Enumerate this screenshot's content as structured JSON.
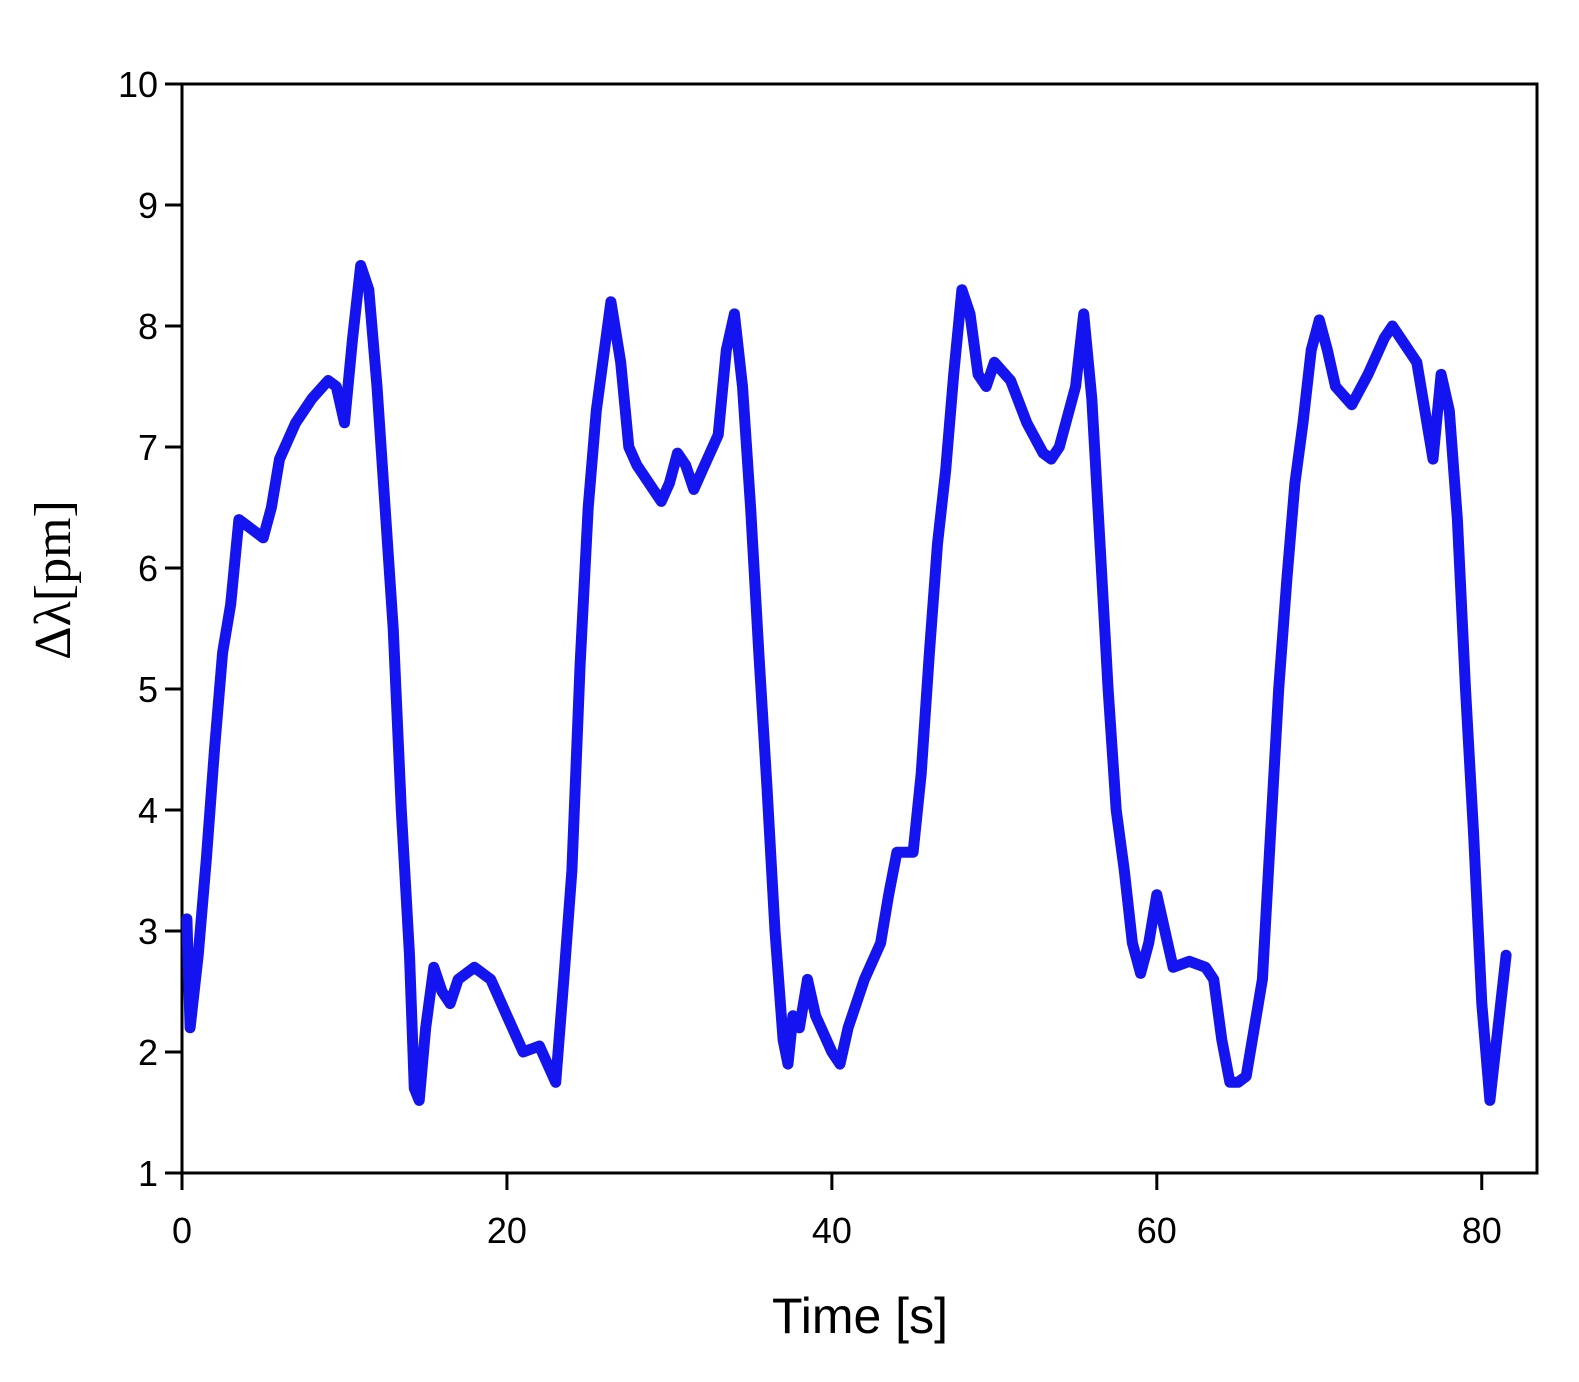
{
  "chart_data": {
    "type": "line",
    "xlabel": "Time [s]",
    "ylabel": "Δλ[pm]",
    "xlim": [
      0,
      83.4
    ],
    "ylim": [
      1,
      10
    ],
    "xticks": [
      0,
      20,
      40,
      60,
      80
    ],
    "yticks": [
      1,
      2,
      3,
      4,
      5,
      6,
      7,
      8,
      9,
      10
    ],
    "series": [
      {
        "color": "#1414f0",
        "x": [
          0.3,
          0.5,
          1,
          1.5,
          2,
          2.5,
          3,
          3.5,
          4,
          5,
          5.5,
          6,
          7,
          8,
          9,
          9.5,
          10,
          10.5,
          11,
          11.5,
          12,
          13,
          13.5,
          14,
          14.3,
          14.6,
          15,
          15.5,
          16,
          16.5,
          17,
          18,
          19,
          20,
          21,
          22,
          23,
          23.5,
          24,
          24.5,
          25,
          25.5,
          26,
          26.4,
          27,
          27.5,
          28,
          29,
          29.5,
          30,
          30.5,
          31,
          31.5,
          32,
          33,
          33.5,
          34,
          34.5,
          35,
          35.5,
          36,
          36.5,
          37,
          37.3,
          37.6,
          38,
          38.5,
          39,
          40,
          40.5,
          41,
          42,
          43,
          43.5,
          44,
          45,
          45.5,
          46,
          46.5,
          47,
          47.5,
          48,
          48.5,
          49,
          49.5,
          50,
          51,
          52,
          53,
          53.5,
          54,
          55,
          55.5,
          56,
          56.5,
          57,
          57.5,
          58,
          58.5,
          59,
          59.5,
          60,
          60.5,
          61,
          62,
          63,
          63.5,
          64,
          64.5,
          65,
          65.5,
          66,
          66.5,
          67,
          67.5,
          68,
          68.5,
          69,
          69.5,
          70,
          70.5,
          71,
          72,
          73,
          74,
          74.5,
          75,
          76,
          76.5,
          77,
          77.5,
          78,
          78.5,
          79,
          79.5,
          80,
          80.5,
          81,
          81.5
        ],
        "values": [
          3.1,
          2.2,
          2.8,
          3.6,
          4.5,
          5.3,
          5.7,
          6.4,
          6.35,
          6.25,
          6.5,
          6.9,
          7.2,
          7.4,
          7.55,
          7.5,
          7.2,
          7.9,
          8.5,
          8.3,
          7.5,
          5.5,
          4.0,
          2.8,
          1.7,
          1.6,
          2.2,
          2.7,
          2.5,
          2.4,
          2.6,
          2.7,
          2.6,
          2.3,
          2.0,
          2.05,
          1.75,
          2.6,
          3.5,
          5.2,
          6.5,
          7.3,
          7.8,
          8.2,
          7.7,
          7.0,
          6.85,
          6.65,
          6.55,
          6.7,
          6.95,
          6.85,
          6.65,
          6.8,
          7.1,
          7.8,
          8.1,
          7.5,
          6.5,
          5.3,
          4.2,
          3.0,
          2.1,
          1.9,
          2.3,
          2.2,
          2.6,
          2.3,
          2.0,
          1.9,
          2.2,
          2.6,
          2.9,
          3.3,
          3.65,
          3.65,
          4.3,
          5.3,
          6.2,
          6.8,
          7.6,
          8.3,
          8.1,
          7.6,
          7.5,
          7.7,
          7.55,
          7.2,
          6.95,
          6.9,
          7.0,
          7.5,
          8.1,
          7.4,
          6.2,
          5.0,
          4.0,
          3.5,
          2.9,
          2.65,
          2.9,
          3.3,
          3.0,
          2.7,
          2.75,
          2.7,
          2.6,
          2.1,
          1.75,
          1.75,
          1.8,
          2.2,
          2.6,
          3.8,
          5.0,
          5.9,
          6.7,
          7.2,
          7.8,
          8.05,
          7.8,
          7.5,
          7.35,
          7.6,
          7.9,
          8.0,
          7.9,
          7.7,
          7.3,
          6.9,
          7.6,
          7.3,
          6.4,
          5.0,
          3.8,
          2.4,
          1.6,
          2.2,
          2.8
        ]
      }
    ]
  }
}
